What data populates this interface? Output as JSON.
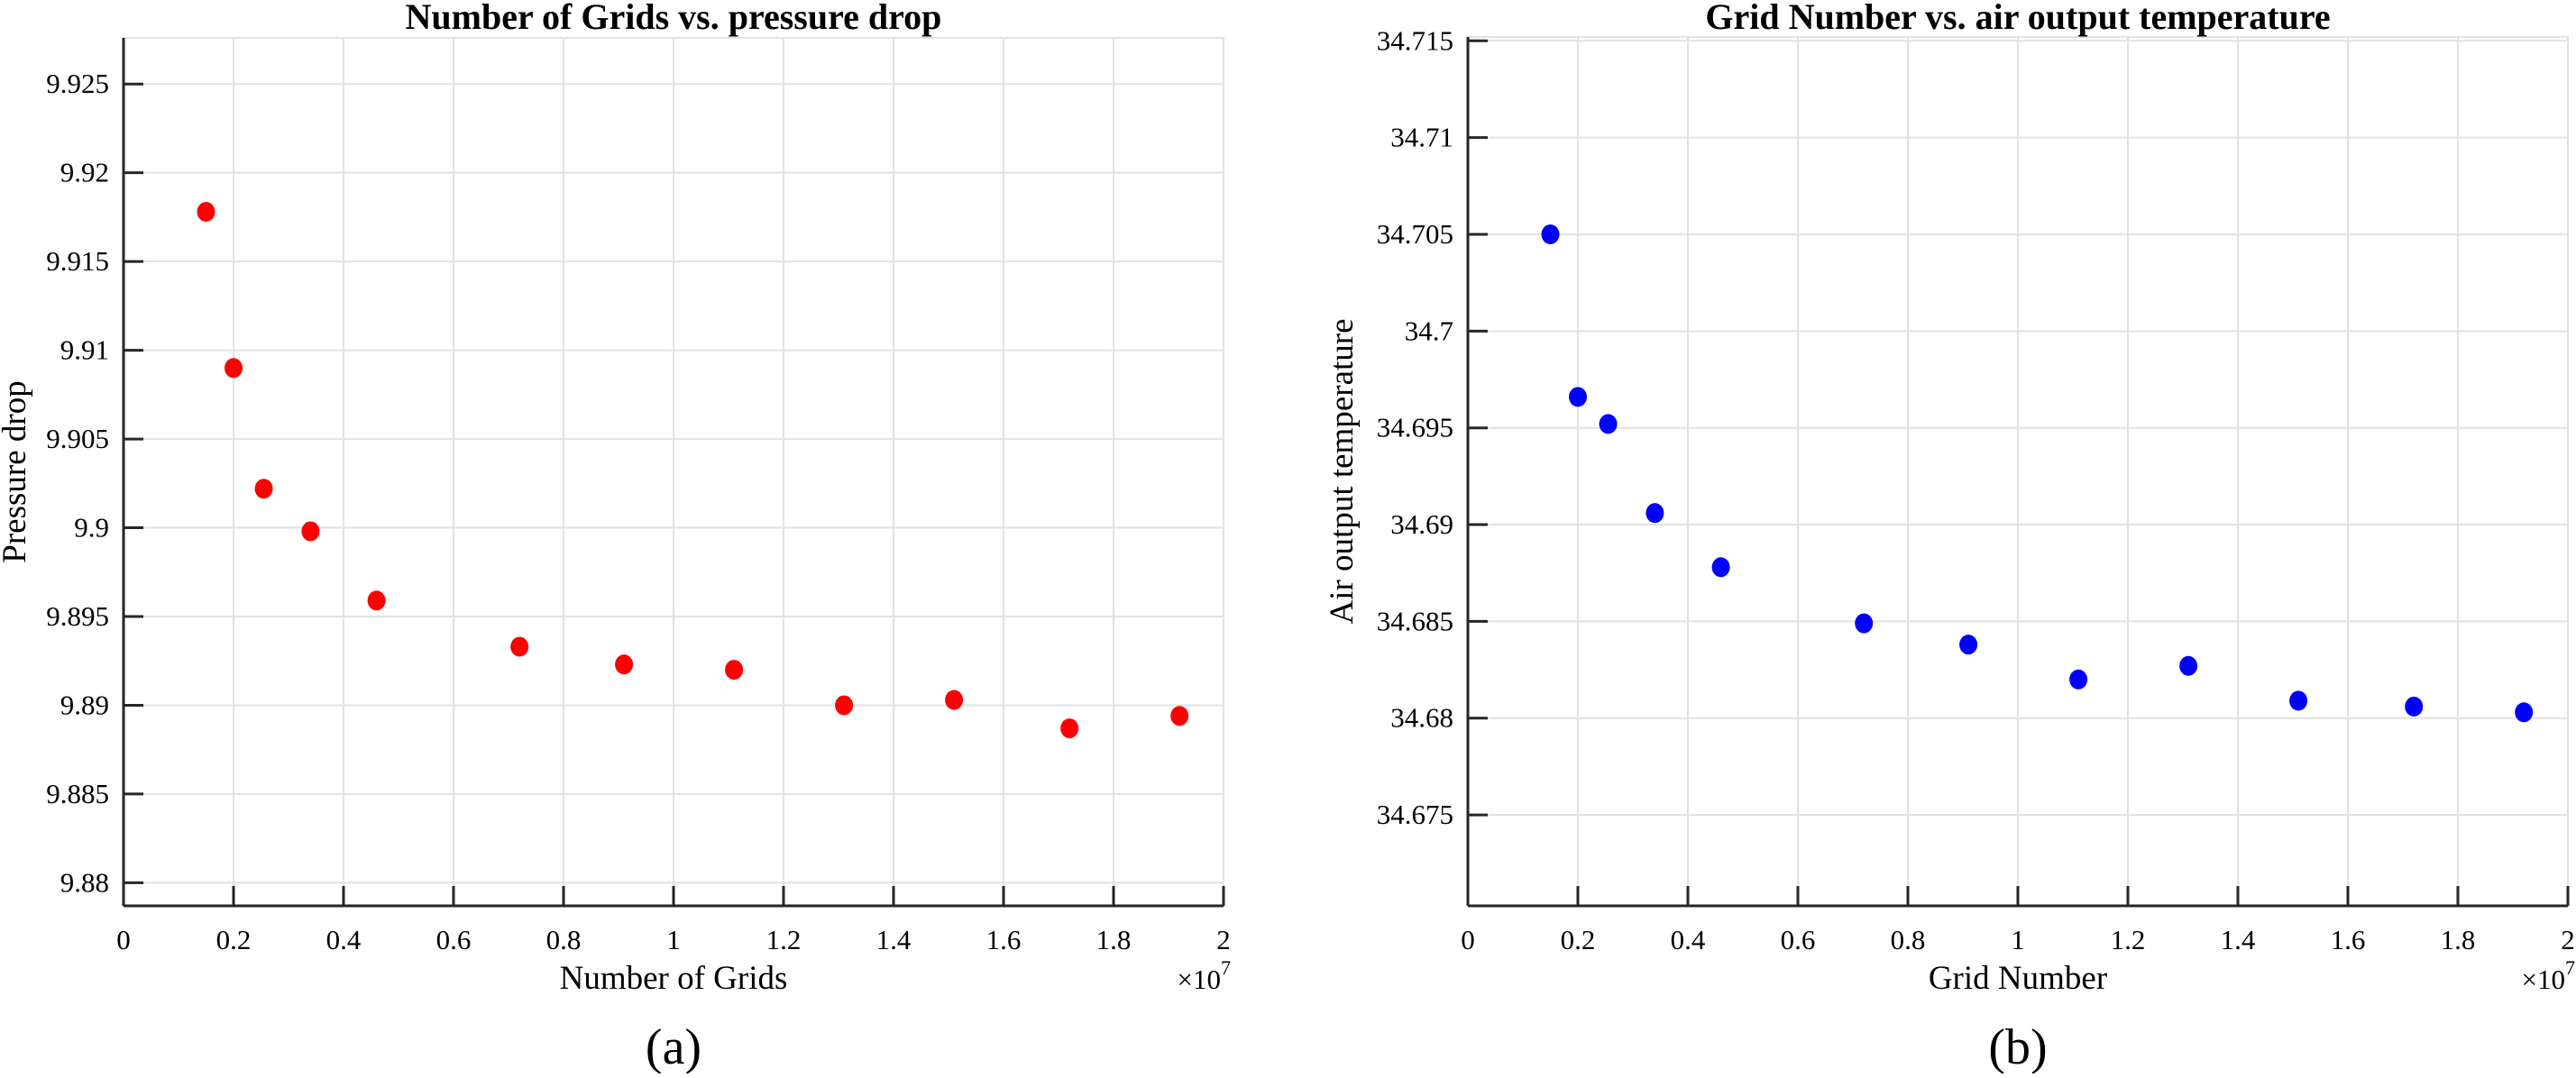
{
  "page": {
    "background": "#ffffff",
    "description": "Two side-by-side grid-independence scatter plots"
  },
  "styles": {
    "grid_color": "#e2e2e2",
    "axis_color": "#262626",
    "text_color": "#000000",
    "marker_colors": {
      "left": "#ff0000",
      "right": "#0000ff"
    }
  },
  "chart_data": [
    {
      "type": "scatter",
      "title": "Number of Grids vs. pressure drop",
      "xlabel": "Number of Grids",
      "ylabel": "Pressure drop",
      "caption": "(a)",
      "marker_color": "#ff0000",
      "grid": true,
      "legend": null,
      "x_multiplier_base": "×10",
      "x_multiplier_exp": "7",
      "xlim": [
        0,
        20000000
      ],
      "ylim": [
        9.8787,
        9.9276
      ],
      "x_ticks": [
        0,
        2000000,
        4000000,
        6000000,
        8000000,
        10000000,
        12000000,
        14000000,
        16000000,
        18000000,
        20000000
      ],
      "x_tick_labels": [
        "0",
        "0.2",
        "0.4",
        "0.6",
        "0.8",
        "1",
        "1.2",
        "1.4",
        "1.6",
        "1.8",
        "2"
      ],
      "y_ticks": [
        9.88,
        9.885,
        9.89,
        9.895,
        9.9,
        9.905,
        9.91,
        9.915,
        9.92,
        9.925
      ],
      "y_tick_labels": [
        "9.88",
        "9.885",
        "9.89",
        "9.895",
        "9.9",
        "9.905",
        "9.91",
        "9.915",
        "9.92",
        "9.925"
      ],
      "x": [
        1500000,
        2000000,
        2550000,
        3400000,
        4600000,
        7200000,
        9100000,
        11100000,
        13100000,
        15100000,
        17200000,
        19200000
      ],
      "y": [
        9.9178,
        9.909,
        9.9022,
        9.8998,
        9.8959,
        9.8933,
        9.8923,
        9.892,
        9.89,
        9.8903,
        9.8887,
        9.8894
      ]
    },
    {
      "type": "scatter",
      "title": "Grid Number vs. air output temperature",
      "xlabel": "Grid Number",
      "ylabel": "Air output temperature",
      "caption": "(b)",
      "marker_color": "#0000ff",
      "grid": true,
      "legend": null,
      "x_multiplier_base": "×10",
      "x_multiplier_exp": "7",
      "xlim": [
        0,
        20000000
      ],
      "ylim": [
        34.6703,
        34.7152
      ],
      "x_ticks": [
        0,
        2000000,
        4000000,
        6000000,
        8000000,
        10000000,
        12000000,
        14000000,
        16000000,
        18000000,
        20000000
      ],
      "x_tick_labels": [
        "0",
        "0.2",
        "0.4",
        "0.6",
        "0.8",
        "1",
        "1.2",
        "1.4",
        "1.6",
        "1.8",
        "2"
      ],
      "y_ticks": [
        34.675,
        34.68,
        34.685,
        34.69,
        34.695,
        34.7,
        34.705,
        34.71,
        34.715
      ],
      "y_tick_labels": [
        "34.675",
        "34.68",
        "34.685",
        "34.69",
        "34.695",
        "34.7",
        "34.705",
        "34.71",
        "34.715"
      ],
      "x": [
        1500000,
        2000000,
        2550000,
        3400000,
        4600000,
        7200000,
        9100000,
        11100000,
        13100000,
        15100000,
        17200000,
        19200000
      ],
      "y": [
        34.705,
        34.6966,
        34.6952,
        34.6906,
        34.6878,
        34.6849,
        34.6838,
        34.682,
        34.6827,
        34.6809,
        34.6806,
        34.6803
      ]
    }
  ]
}
